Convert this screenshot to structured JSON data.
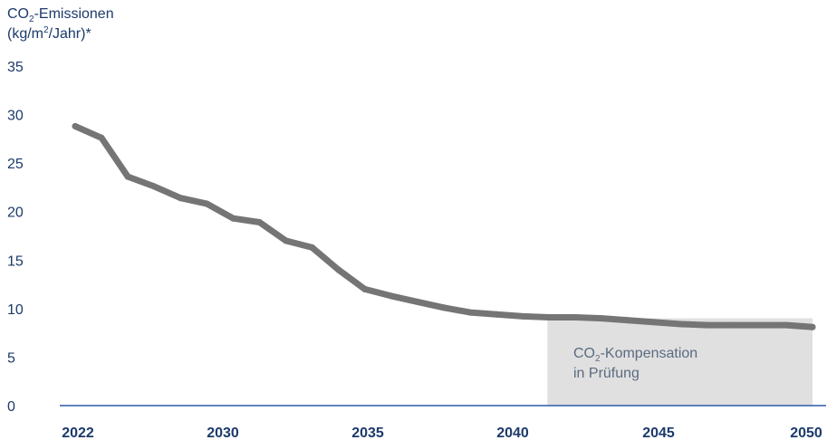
{
  "chart_data": {
    "type": "line",
    "ylabel": {
      "line1_prefix": "CO",
      "line1_sub": "2",
      "line1_suffix": "-Emissionen",
      "line2_prefix": "(kg/m",
      "line2_sup": "2",
      "line2_suffix": "/Jahr)*"
    },
    "ylim": [
      0,
      35
    ],
    "yticks": [
      "0",
      "5",
      "10",
      "15",
      "20",
      "25",
      "30",
      "35"
    ],
    "xlim": [
      2022,
      2050
    ],
    "xticks": [
      "2022",
      "2030",
      "2035",
      "2040",
      "2045",
      "2050"
    ],
    "series": [
      {
        "x": [
          2022,
          2023,
          2024,
          2025,
          2026,
          2027,
          2028,
          2029,
          2030,
          2031,
          2032,
          2033,
          2034,
          2035,
          2036,
          2037,
          2038,
          2039,
          2040,
          2041,
          2042,
          2043,
          2044,
          2045,
          2046,
          2047,
          2048,
          2049,
          2050
        ],
        "y": [
          28.8,
          27.6,
          23.6,
          22.6,
          21.4,
          20.8,
          19.3,
          18.9,
          17.0,
          16.3,
          14.0,
          12.0,
          11.3,
          10.7,
          10.1,
          9.6,
          9.4,
          9.2,
          9.1,
          9.1,
          9.0,
          8.8,
          8.6,
          8.4,
          8.3,
          8.3,
          8.3,
          8.3,
          8.1
        ],
        "color": "#757575"
      }
    ],
    "band": {
      "x_range": [
        2040,
        2050
      ],
      "line1_prefix": "CO",
      "line1_sub": "2",
      "line1_suffix": "-Kompensation",
      "line2": "in Prüfung",
      "color": "#e0e0e0"
    },
    "grid": false,
    "axis_color": "#2b5aa6"
  }
}
